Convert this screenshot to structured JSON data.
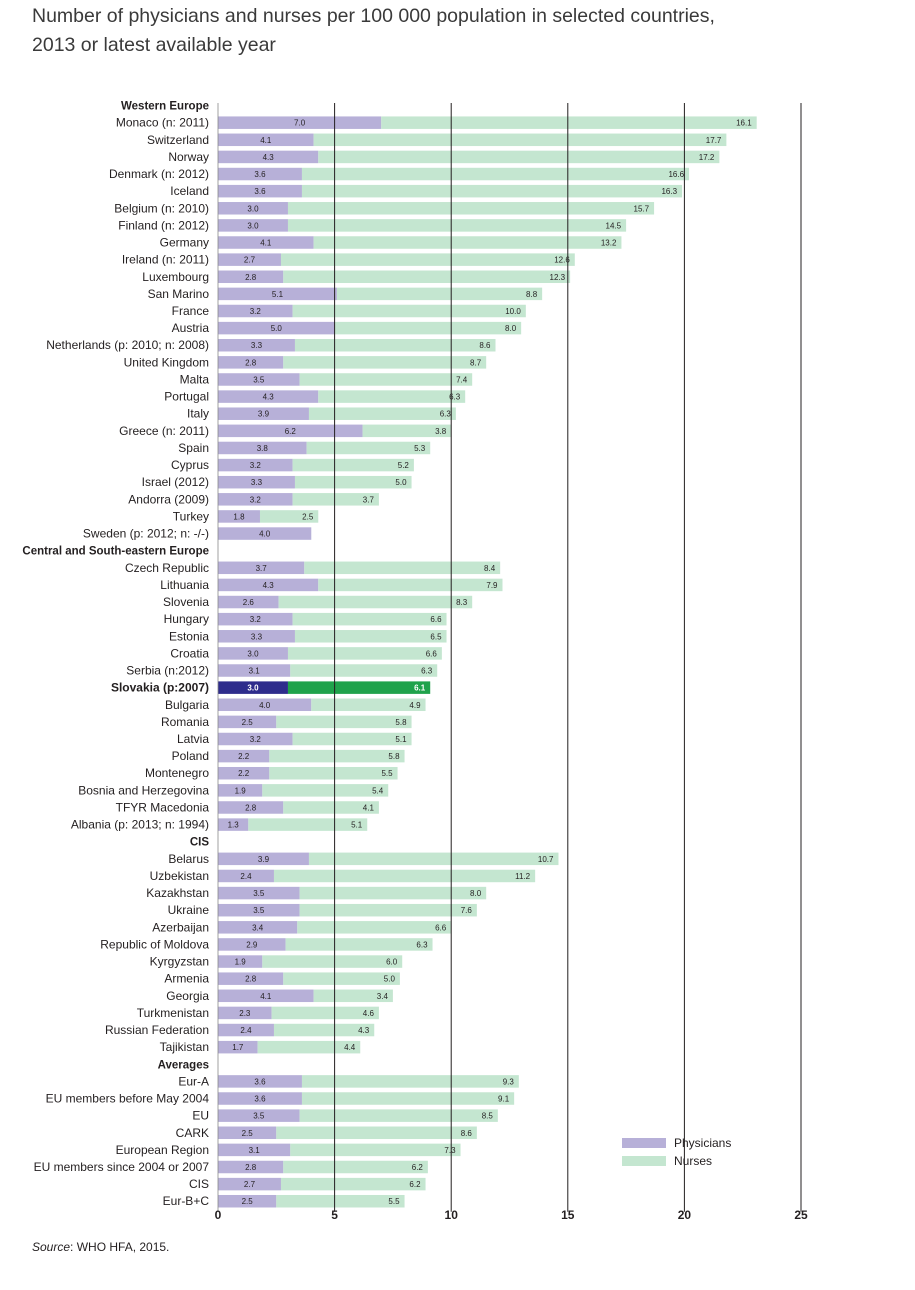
{
  "title": {
    "line1": "Number of physicians and nurses per 100 000 population in selected countries,",
    "line2": "2013 or latest available year"
  },
  "source": {
    "label": "Source",
    "text": ": WHO HFA, 2015."
  },
  "colors": {
    "physicians": "#b7b0d8",
    "nurses": "#c4e6d0",
    "highlight_physicians": "#2e2c8c",
    "highlight_nurses": "#1fa24b",
    "gridline": "#231f20"
  },
  "chart_data": {
    "type": "bar",
    "orientation": "horizontal",
    "stacked": true,
    "xlim": [
      0,
      25
    ],
    "xticks": [
      0,
      5,
      10,
      15,
      20,
      25
    ],
    "legend": {
      "position": "bottom-right",
      "entries": [
        "Physicians",
        "Nurses"
      ]
    },
    "series": [
      {
        "name": "Physicians"
      },
      {
        "name": "Nurses"
      }
    ],
    "groups": [
      {
        "name": "Western Europe",
        "rows": [
          {
            "label": "Monaco (n: 2011)",
            "physicians": 7.0,
            "nurses": 16.1
          },
          {
            "label": "Switzerland",
            "physicians": 4.1,
            "nurses": 17.7
          },
          {
            "label": "Norway",
            "physicians": 4.3,
            "nurses": 17.2
          },
          {
            "label": "Denmark (n: 2012)",
            "physicians": 3.6,
            "nurses": 16.6
          },
          {
            "label": "Iceland",
            "physicians": 3.6,
            "nurses": 16.3
          },
          {
            "label": "Belgium (n: 2010)",
            "physicians": 3.0,
            "nurses": 15.7
          },
          {
            "label": "Finland (n: 2012)",
            "physicians": 3.0,
            "nurses": 14.5
          },
          {
            "label": "Germany",
            "physicians": 4.1,
            "nurses": 13.2
          },
          {
            "label": "Ireland (n: 2011)",
            "physicians": 2.7,
            "nurses": 12.6
          },
          {
            "label": "Luxembourg",
            "physicians": 2.8,
            "nurses": 12.3
          },
          {
            "label": "San Marino",
            "physicians": 5.1,
            "nurses": 8.8
          },
          {
            "label": "France",
            "physicians": 3.2,
            "nurses": 10.0
          },
          {
            "label": "Austria",
            "physicians": 5.0,
            "nurses": 8.0
          },
          {
            "label": "Netherlands (p: 2010; n: 2008)",
            "physicians": 3.3,
            "nurses": 8.6
          },
          {
            "label": "United Kingdom",
            "physicians": 2.8,
            "nurses": 8.7
          },
          {
            "label": "Malta",
            "physicians": 3.5,
            "nurses": 7.4
          },
          {
            "label": "Portugal",
            "physicians": 4.3,
            "nurses": 6.3
          },
          {
            "label": "Italy",
            "physicians": 3.9,
            "nurses": 6.3
          },
          {
            "label": "Greece (n: 2011)",
            "physicians": 6.2,
            "nurses": 3.8
          },
          {
            "label": "Spain",
            "physicians": 3.8,
            "nurses": 5.3
          },
          {
            "label": "Cyprus",
            "physicians": 3.2,
            "nurses": 5.2
          },
          {
            "label": "Israel (2012)",
            "physicians": 3.3,
            "nurses": 5.0
          },
          {
            "label": "Andorra (2009)",
            "physicians": 3.2,
            "nurses": 3.7
          },
          {
            "label": "Turkey",
            "physicians": 1.8,
            "nurses": 2.5
          },
          {
            "label": "Sweden (p: 2012; n: -/-)",
            "physicians": 4.0,
            "nurses": null
          }
        ]
      },
      {
        "name": "Central and South-eastern Europe",
        "rows": [
          {
            "label": "Czech Republic",
            "physicians": 3.7,
            "nurses": 8.4
          },
          {
            "label": "Lithuania",
            "physicians": 4.3,
            "nurses": 7.9
          },
          {
            "label": "Slovenia",
            "physicians": 2.6,
            "nurses": 8.3
          },
          {
            "label": "Hungary",
            "physicians": 3.2,
            "nurses": 6.6
          },
          {
            "label": "Estonia",
            "physicians": 3.3,
            "nurses": 6.5
          },
          {
            "label": "Croatia",
            "physicians": 3.0,
            "nurses": 6.6
          },
          {
            "label": "Serbia (n:2012)",
            "physicians": 3.1,
            "nurses": 6.3
          },
          {
            "label": "Slovakia (p:2007)",
            "physicians": 3.0,
            "nurses": 6.1,
            "highlight": true
          },
          {
            "label": "Bulgaria",
            "physicians": 4.0,
            "nurses": 4.9
          },
          {
            "label": "Romania",
            "physicians": 2.5,
            "nurses": 5.8
          },
          {
            "label": "Latvia",
            "physicians": 3.2,
            "nurses": 5.1
          },
          {
            "label": "Poland",
            "physicians": 2.2,
            "nurses": 5.8
          },
          {
            "label": "Montenegro",
            "physicians": 2.2,
            "nurses": 5.5
          },
          {
            "label": "Bosnia and Herzegovina",
            "physicians": 1.9,
            "nurses": 5.4
          },
          {
            "label": "TFYR Macedonia",
            "physicians": 2.8,
            "nurses": 4.1
          },
          {
            "label": "Albania (p: 2013; n: 1994)",
            "physicians": 1.3,
            "nurses": 5.1
          }
        ]
      },
      {
        "name": "CIS",
        "rows": [
          {
            "label": "Belarus",
            "physicians": 3.9,
            "nurses": 10.7
          },
          {
            "label": "Uzbekistan",
            "physicians": 2.4,
            "nurses": 11.2
          },
          {
            "label": "Kazakhstan",
            "physicians": 3.5,
            "nurses": 8.0
          },
          {
            "label": "Ukraine",
            "physicians": 3.5,
            "nurses": 7.6
          },
          {
            "label": "Azerbaijan",
            "physicians": 3.4,
            "nurses": 6.6
          },
          {
            "label": "Republic of Moldova",
            "physicians": 2.9,
            "nurses": 6.3
          },
          {
            "label": "Kyrgyzstan",
            "physicians": 1.9,
            "nurses": 6.0
          },
          {
            "label": "Armenia",
            "physicians": 2.8,
            "nurses": 5.0
          },
          {
            "label": "Georgia",
            "physicians": 4.1,
            "nurses": 3.4
          },
          {
            "label": "Turkmenistan",
            "physicians": 2.3,
            "nurses": 4.6
          },
          {
            "label": "Russian Federation",
            "physicians": 2.4,
            "nurses": 4.3
          },
          {
            "label": "Tajikistan",
            "physicians": 1.7,
            "nurses": 4.4
          }
        ]
      },
      {
        "name": "Averages",
        "rows": [
          {
            "label": "Eur-A",
            "physicians": 3.6,
            "nurses": 9.3
          },
          {
            "label": "EU members before May 2004",
            "physicians": 3.6,
            "nurses": 9.1
          },
          {
            "label": "EU",
            "physicians": 3.5,
            "nurses": 8.5
          },
          {
            "label": "CARK",
            "physicians": 2.5,
            "nurses": 8.6
          },
          {
            "label": "European Region",
            "physicians": 3.1,
            "nurses": 7.3
          },
          {
            "label": "EU members since 2004 or 2007",
            "physicians": 2.8,
            "nurses": 6.2
          },
          {
            "label": "CIS",
            "physicians": 2.7,
            "nurses": 6.2
          },
          {
            "label": "Eur-B+C",
            "physicians": 2.5,
            "nurses": 5.5
          }
        ]
      }
    ]
  }
}
